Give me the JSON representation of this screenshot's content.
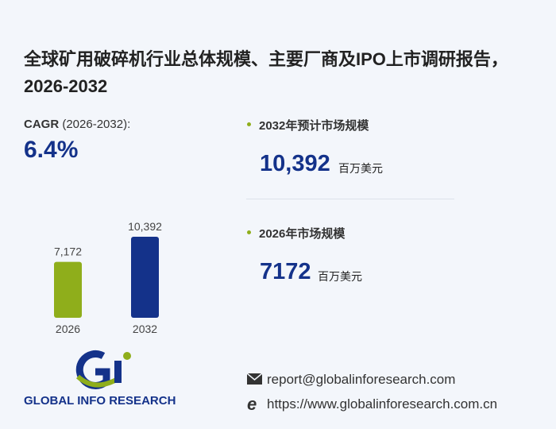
{
  "title": "全球矿用破碎机行业总体规模、主要厂商及IPO上市调研报告，2026-2032",
  "cagr": {
    "label": "CAGR",
    "period": "(2026-2032):",
    "value": "6.4%"
  },
  "stats": [
    {
      "label": "2032年预计市场规模",
      "value": "10,392",
      "unit": "百万美元"
    },
    {
      "label": "2026年市场规模",
      "value": "7172",
      "unit": "百万美元"
    }
  ],
  "chart_data": {
    "type": "bar",
    "categories": [
      "2026",
      "2032"
    ],
    "values": [
      7172,
      10392
    ],
    "value_labels": [
      "7,172",
      "10,392"
    ],
    "colors": [
      "#8fae1b",
      "#14328a"
    ]
  },
  "logo": {
    "text": "GLOBAL INFO RESEARCH"
  },
  "contacts": {
    "email": "report@globalinforesearch.com",
    "website": "https://www.globalinforesearch.com.cn"
  }
}
